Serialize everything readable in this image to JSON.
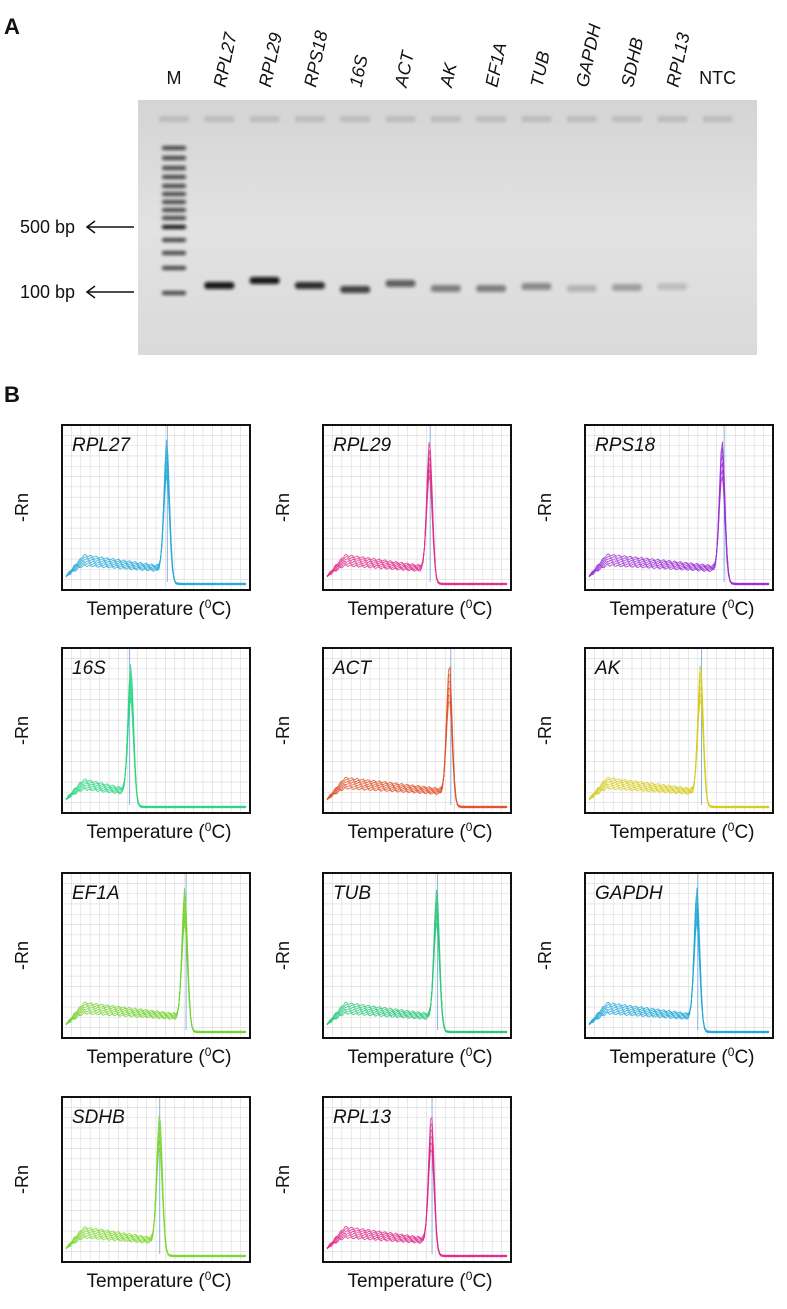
{
  "panel_a": {
    "label": "A",
    "lanes": [
      {
        "label": "M",
        "italic": false
      },
      {
        "label": "RPL27",
        "italic": true
      },
      {
        "label": "RPL29",
        "italic": true
      },
      {
        "label": "RPS18",
        "italic": true
      },
      {
        "label": "16S",
        "italic": true
      },
      {
        "label": "ACT",
        "italic": true
      },
      {
        "label": "AK",
        "italic": true
      },
      {
        "label": "EF1A",
        "italic": true
      },
      {
        "label": "TUB",
        "italic": true
      },
      {
        "label": "GAPDH",
        "italic": true
      },
      {
        "label": "SDHB",
        "italic": true
      },
      {
        "label": "RPL13",
        "italic": true
      },
      {
        "label": "NTC",
        "italic": false
      }
    ],
    "markers": [
      "500 bp",
      "100 bp"
    ]
  },
  "panel_b": {
    "label": "B",
    "y_label": "-Rn",
    "x_label": {
      "prefix": "Temperature (",
      "sup": "0",
      "suffix": "C)"
    },
    "plots": [
      {
        "gene": "RPL27",
        "color": "#2aaad8"
      },
      {
        "gene": "RPL29",
        "color": "#e0308c"
      },
      {
        "gene": "RPS18",
        "color": "#9a30d4"
      },
      {
        "gene": "16S",
        "color": "#2cd682"
      },
      {
        "gene": "ACT",
        "color": "#e0542c"
      },
      {
        "gene": "AK",
        "color": "#d6cc1e"
      },
      {
        "gene": "EF1A",
        "color": "#76d232"
      },
      {
        "gene": "TUB",
        "color": "#2ec87c"
      },
      {
        "gene": "GAPDH",
        "color": "#22a8d8"
      },
      {
        "gene": "SDHB",
        "color": "#7cd830"
      },
      {
        "gene": "RPL13",
        "color": "#e02c8c"
      }
    ]
  }
}
